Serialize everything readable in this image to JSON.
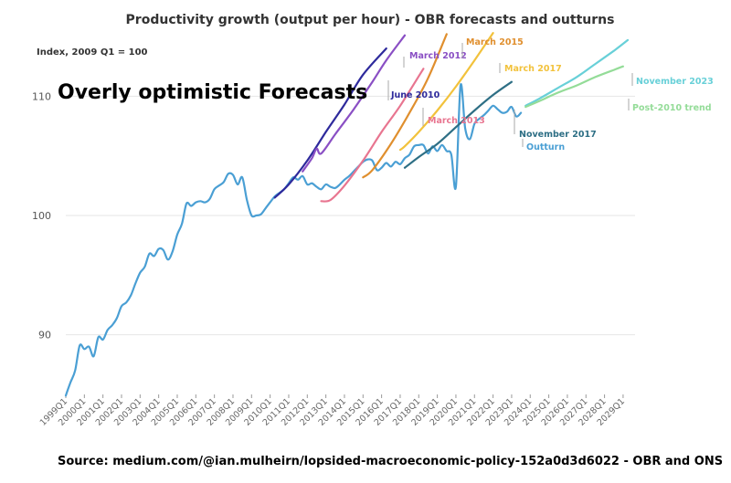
{
  "chart_data": {
    "type": "line",
    "title": "Productivity growth (output per hour) - OBR forecasts and outturns",
    "subtitle": "Index, 2009 Q1 = 100",
    "annotation": "Overly optimistic Forecasts",
    "source": "Source: medium.com/@ian.mulheirn/lopsided-macroeconomic-policy-152a0d3d6022  - OBR and ONS",
    "ylim": [
      85,
      115
    ],
    "yticks": [
      90,
      100,
      110
    ],
    "xlim": [
      1999.0,
      2029.25
    ],
    "x_tick_labels": [
      "1999Q1",
      "2000Q1",
      "2001Q1",
      "2002Q1",
      "2003Q1",
      "2004Q1",
      "2005Q1",
      "2006Q1",
      "2007Q1",
      "2008Q1",
      "2009Q1",
      "2010Q1",
      "2011Q1",
      "2012Q1",
      "2013Q1",
      "2014Q1",
      "2015Q1",
      "2016Q1",
      "2017Q1",
      "2018Q1",
      "2019Q1",
      "2020Q1",
      "2021Q1",
      "2022Q1",
      "2023Q1",
      "2024Q1",
      "2025Q1",
      "2026Q1",
      "2027Q1",
      "2028Q1",
      "2029Q1"
    ],
    "grid": true,
    "series": [
      {
        "name": "Outturn",
        "color": "#4a9fd4",
        "x": [
          1999.0,
          1999.25,
          1999.5,
          1999.75,
          2000.0,
          2000.25,
          2000.5,
          2000.75,
          2001.0,
          2001.25,
          2001.5,
          2001.75,
          2002.0,
          2002.25,
          2002.5,
          2002.75,
          2003.0,
          2003.25,
          2003.5,
          2003.75,
          2004.0,
          2004.25,
          2004.5,
          2004.75,
          2005.0,
          2005.25,
          2005.5,
          2005.75,
          2006.0,
          2006.25,
          2006.5,
          2006.75,
          2007.0,
          2007.25,
          2007.5,
          2007.75,
          2008.0,
          2008.25,
          2008.5,
          2008.75,
          2009.0,
          2009.25,
          2009.5,
          2009.75,
          2010.0,
          2010.25,
          2010.5,
          2010.75,
          2011.0,
          2011.25,
          2011.5,
          2011.75,
          2012.0,
          2012.25,
          2012.5,
          2012.75,
          2013.0,
          2013.25,
          2013.5,
          2013.75,
          2014.0,
          2014.25,
          2014.5,
          2014.75,
          2015.0,
          2015.25,
          2015.5,
          2015.75,
          2016.0,
          2016.25,
          2016.5,
          2016.75,
          2017.0,
          2017.25,
          2017.5,
          2017.75,
          2018.0,
          2018.25,
          2018.5,
          2018.75,
          2019.0,
          2019.25,
          2019.5,
          2019.75,
          2020.0,
          2020.25,
          2020.5,
          2020.75,
          2021.0,
          2021.25,
          2021.5,
          2021.75,
          2022.0,
          2022.25,
          2022.5,
          2022.75,
          2023.0,
          2023.25,
          2023.5
        ],
        "y": [
          84.9,
          86,
          87,
          89.1,
          88.8,
          89,
          88.2,
          89.8,
          89.6,
          90.4,
          90.8,
          91.4,
          92.4,
          92.7,
          93.3,
          94.3,
          95.2,
          95.7,
          96.8,
          96.6,
          97.2,
          97.1,
          96.3,
          97,
          98.4,
          99.3,
          101,
          100.8,
          101.1,
          101.2,
          101.1,
          101.4,
          102.2,
          102.5,
          102.8,
          103.5,
          103.4,
          102.6,
          103.2,
          101.3,
          100,
          100,
          100.1,
          100.6,
          101.1,
          101.6,
          101.9,
          102.2,
          102.7,
          103.2,
          103,
          103.3,
          102.6,
          102.7,
          102.4,
          102.2,
          102.6,
          102.4,
          102.3,
          102.6,
          103,
          103.3,
          103.7,
          104.1,
          104.5,
          104.7,
          104.6,
          103.8,
          104,
          104.4,
          104.1,
          104.5,
          104.3,
          104.8,
          105.1,
          105.8,
          105.9,
          105.9,
          105.2,
          105.8,
          105.4,
          105.9,
          105.4,
          105.1,
          102.4,
          110.9,
          107.3,
          106.4,
          107.7,
          108.1,
          108.4,
          108.8,
          109.2,
          108.9,
          108.6,
          108.7,
          109.1,
          108.3,
          108.6
        ]
      },
      {
        "name": "June 2010",
        "color": "#2e2a9c",
        "x": [
          2010.25,
          2011,
          2012,
          2013,
          2014,
          2015,
          2016.25
        ],
        "y": [
          101.5,
          102.6,
          104.6,
          107,
          109.3,
          111.8,
          114
        ]
      },
      {
        "name": "March 2012",
        "color": "#8a4fc4",
        "x": [
          2011.75,
          2012.25,
          2012.5,
          2012.75,
          2013.5,
          2014.5,
          2015.5,
          2016.25,
          2017.25
        ],
        "y": [
          103.7,
          104.8,
          105.6,
          105.2,
          106.8,
          108.9,
          111.2,
          113,
          115.1
        ]
      },
      {
        "name": "March 2013",
        "color": "#e87590",
        "x": [
          2012.75,
          2013.25,
          2014,
          2015,
          2016,
          2017,
          2018.25
        ],
        "y": [
          101.2,
          101.3,
          102.5,
          104.6,
          107,
          109.2,
          112.3
        ]
      },
      {
        "name": "March 2015",
        "color": "#e08f2e",
        "x": [
          2015.0,
          2015.5,
          2016.5,
          2017.5,
          2018.5,
          2019.5
        ],
        "y": [
          103.2,
          103.8,
          106,
          108.6,
          111.5,
          115.2
        ]
      },
      {
        "name": "March 2017",
        "color": "#f2c23c",
        "x": [
          2017.0,
          2017.25,
          2018,
          2019,
          2020,
          2021,
          2022.0
        ],
        "y": [
          105.5,
          105.8,
          107,
          108.8,
          110.8,
          113,
          115.3
        ]
      },
      {
        "name": "November 2017",
        "color": "#2e6f85",
        "x": [
          2017.25,
          2018,
          2019,
          2020,
          2021,
          2022,
          2023.0
        ],
        "y": [
          104,
          104.9,
          106,
          107.4,
          108.8,
          110.1,
          111.2
        ]
      },
      {
        "name": "November 2023",
        "color": "#68d0d8",
        "x": [
          2023.75,
          2024.5,
          2025.5,
          2026.5,
          2027.5,
          2028.5,
          2029.25
        ],
        "y": [
          109.2,
          109.8,
          110.7,
          111.6,
          112.7,
          113.8,
          114.7
        ]
      },
      {
        "name": "Post-2010 trend",
        "color": "#94dc98",
        "x": [
          2023.75,
          2024.5,
          2025.5,
          2026.5,
          2027.5,
          2028.5,
          2029.0
        ],
        "y": [
          109.1,
          109.6,
          110.3,
          110.9,
          111.6,
          112.2,
          112.5
        ]
      }
    ]
  }
}
